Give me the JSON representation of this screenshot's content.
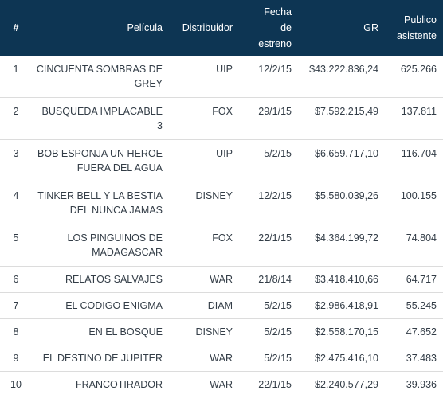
{
  "table": {
    "headers": {
      "num": "#",
      "pelicula": "Película",
      "distribuidor": "Distribuidor",
      "fecha": [
        "Fecha",
        "de",
        "estreno"
      ],
      "gr": "GR",
      "publico": [
        "Publico",
        "asistente"
      ]
    },
    "rows": [
      {
        "num": "1",
        "pelicula": [
          "CINCUENTA SOMBRAS DE",
          "GREY"
        ],
        "distribuidor": "UIP",
        "fecha": "12/2/15",
        "gr": "$43.222.836,24",
        "publico": "625.266"
      },
      {
        "num": "2",
        "pelicula": [
          "BUSQUEDA IMPLACABLE",
          "3"
        ],
        "distribuidor": "FOX",
        "fecha": "29/1/15",
        "gr": "$7.592.215,49",
        "publico": "137.811"
      },
      {
        "num": "3",
        "pelicula": [
          "BOB ESPONJA UN HEROE",
          "FUERA DEL AGUA"
        ],
        "distribuidor": "UIP",
        "fecha": "5/2/15",
        "gr": "$6.659.717,10",
        "publico": "116.704"
      },
      {
        "num": "4",
        "pelicula": [
          "TINKER BELL Y LA BESTIA",
          "DEL NUNCA JAMAS"
        ],
        "distribuidor": "DISNEY",
        "fecha": "12/2/15",
        "gr": "$5.580.039,26",
        "publico": "100.155"
      },
      {
        "num": "5",
        "pelicula": [
          "LOS PINGUINOS DE",
          "MADAGASCAR"
        ],
        "distribuidor": "FOX",
        "fecha": "22/1/15",
        "gr": "$4.364.199,72",
        "publico": "74.804"
      },
      {
        "num": "6",
        "pelicula": [
          "RELATOS SALVAJES"
        ],
        "distribuidor": "WAR",
        "fecha": "21/8/14",
        "gr": "$3.418.410,66",
        "publico": "64.717"
      },
      {
        "num": "7",
        "pelicula": [
          "EL CODIGO ENIGMA"
        ],
        "distribuidor": "DIAM",
        "fecha": "5/2/15",
        "gr": "$2.986.418,91",
        "publico": "55.245"
      },
      {
        "num": "8",
        "pelicula": [
          "EN EL BOSQUE"
        ],
        "distribuidor": "DISNEY",
        "fecha": "5/2/15",
        "gr": "$2.558.170,15",
        "publico": "47.652"
      },
      {
        "num": "9",
        "pelicula": [
          "EL DESTINO DE JUPITER"
        ],
        "distribuidor": "WAR",
        "fecha": "5/2/15",
        "gr": "$2.475.416,10",
        "publico": "37.483"
      },
      {
        "num": "10",
        "pelicula": [
          "FRANCOTIRADOR"
        ],
        "distribuidor": "WAR",
        "fecha": "22/1/15",
        "gr": "$2.240.577,29",
        "publico": "39.936"
      }
    ]
  }
}
